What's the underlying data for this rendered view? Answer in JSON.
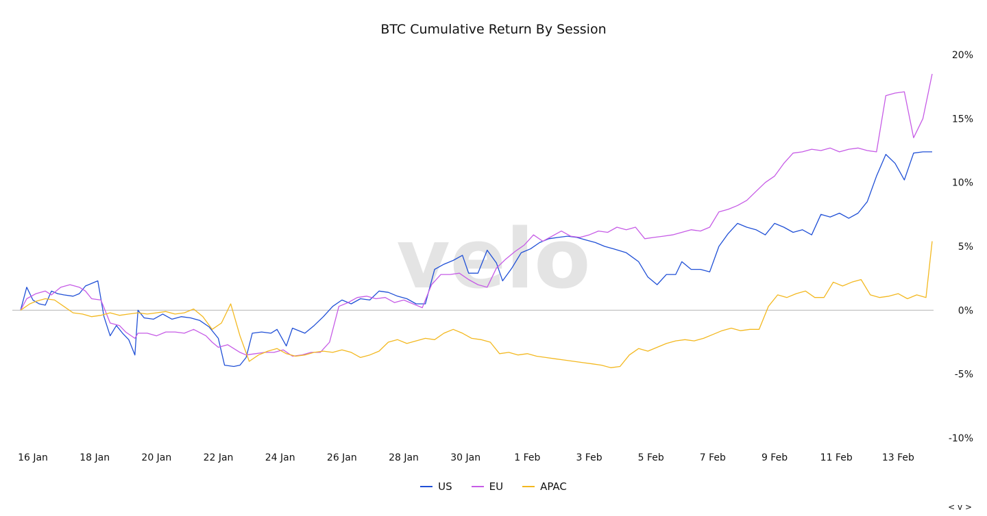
{
  "chart_data": {
    "type": "line",
    "title": "BTC Cumulative Return By Session",
    "watermark": "velo",
    "y_ticks": [
      "20%",
      "15%",
      "10%",
      "5%",
      "0%",
      "-5%",
      "-10%"
    ],
    "x_ticks": [
      "16 Jan",
      "18 Jan",
      "20 Jan",
      "22 Jan",
      "24 Jan",
      "26 Jan",
      "28 Jan",
      "30 Jan",
      "1 Feb",
      "3 Feb",
      "5 Feb",
      "7 Feb",
      "9 Feb",
      "11 Feb",
      "13 Feb"
    ],
    "ylim": [
      -10,
      20
    ],
    "y_axis_position": "right",
    "grid": false,
    "legend_placement": "bottom",
    "series": [
      {
        "name": "US",
        "color": "#1f4fd6",
        "points": [
          [
            0.0,
            0.0
          ],
          [
            0.2,
            1.8
          ],
          [
            0.4,
            0.8
          ],
          [
            0.6,
            0.5
          ],
          [
            0.8,
            0.4
          ],
          [
            1.0,
            1.5
          ],
          [
            1.2,
            1.3
          ],
          [
            1.4,
            1.2
          ],
          [
            1.7,
            1.1
          ],
          [
            1.9,
            1.3
          ],
          [
            2.1,
            1.9
          ],
          [
            2.3,
            2.1
          ],
          [
            2.5,
            2.3
          ],
          [
            2.7,
            -0.5
          ],
          [
            2.9,
            -2.0
          ],
          [
            3.1,
            -1.2
          ],
          [
            3.3,
            -1.8
          ],
          [
            3.5,
            -2.3
          ],
          [
            3.7,
            -3.5
          ],
          [
            3.8,
            0.0
          ],
          [
            4.0,
            -0.6
          ],
          [
            4.3,
            -0.7
          ],
          [
            4.6,
            -0.3
          ],
          [
            4.9,
            -0.7
          ],
          [
            5.2,
            -0.5
          ],
          [
            5.5,
            -0.6
          ],
          [
            5.8,
            -0.8
          ],
          [
            6.1,
            -1.3
          ],
          [
            6.4,
            -2.2
          ],
          [
            6.6,
            -4.3
          ],
          [
            6.9,
            -4.4
          ],
          [
            7.1,
            -4.3
          ],
          [
            7.3,
            -3.7
          ],
          [
            7.5,
            -1.8
          ],
          [
            7.8,
            -1.7
          ],
          [
            8.1,
            -1.8
          ],
          [
            8.3,
            -1.5
          ],
          [
            8.6,
            -2.8
          ],
          [
            8.8,
            -1.4
          ],
          [
            9.2,
            -1.8
          ],
          [
            9.5,
            -1.2
          ],
          [
            9.8,
            -0.5
          ],
          [
            10.1,
            0.3
          ],
          [
            10.4,
            0.8
          ],
          [
            10.7,
            0.5
          ],
          [
            11.0,
            0.9
          ],
          [
            11.3,
            0.8
          ],
          [
            11.6,
            1.5
          ],
          [
            11.9,
            1.4
          ],
          [
            12.2,
            1.1
          ],
          [
            12.5,
            0.9
          ],
          [
            12.8,
            0.5
          ],
          [
            13.1,
            0.5
          ],
          [
            13.4,
            3.2
          ],
          [
            13.7,
            3.6
          ],
          [
            14.0,
            3.9
          ],
          [
            14.3,
            4.3
          ],
          [
            14.5,
            2.9
          ],
          [
            14.8,
            2.9
          ],
          [
            15.1,
            4.7
          ],
          [
            15.4,
            3.7
          ],
          [
            15.6,
            2.3
          ],
          [
            15.9,
            3.3
          ],
          [
            16.2,
            4.5
          ],
          [
            16.5,
            4.8
          ],
          [
            16.8,
            5.3
          ],
          [
            17.1,
            5.6
          ],
          [
            17.4,
            5.7
          ],
          [
            17.7,
            5.8
          ],
          [
            18.0,
            5.7
          ],
          [
            18.3,
            5.5
          ],
          [
            18.6,
            5.3
          ],
          [
            18.9,
            5.0
          ],
          [
            19.2,
            4.8
          ],
          [
            19.6,
            4.5
          ],
          [
            20.0,
            3.8
          ],
          [
            20.3,
            2.6
          ],
          [
            20.6,
            2.0
          ],
          [
            20.9,
            2.8
          ],
          [
            21.2,
            2.8
          ],
          [
            21.4,
            3.8
          ],
          [
            21.7,
            3.2
          ],
          [
            22.0,
            3.2
          ],
          [
            22.3,
            3.0
          ],
          [
            22.6,
            5.0
          ],
          [
            22.9,
            6.0
          ],
          [
            23.2,
            6.8
          ],
          [
            23.5,
            6.5
          ],
          [
            23.8,
            6.3
          ],
          [
            24.1,
            5.9
          ],
          [
            24.4,
            6.8
          ],
          [
            24.7,
            6.5
          ],
          [
            25.0,
            6.1
          ],
          [
            25.3,
            6.3
          ],
          [
            25.6,
            5.9
          ],
          [
            25.9,
            7.5
          ],
          [
            26.2,
            7.3
          ],
          [
            26.5,
            7.6
          ],
          [
            26.8,
            7.2
          ],
          [
            27.1,
            7.6
          ],
          [
            27.4,
            8.5
          ],
          [
            27.7,
            10.5
          ],
          [
            28.0,
            12.2
          ],
          [
            28.3,
            11.5
          ],
          [
            28.6,
            10.2
          ],
          [
            28.9,
            12.3
          ],
          [
            29.2,
            12.4
          ],
          [
            29.5,
            12.4
          ]
        ]
      },
      {
        "name": "EU",
        "color": "#c65be6",
        "points": [
          [
            0.0,
            0.0
          ],
          [
            0.2,
            0.9
          ],
          [
            0.5,
            1.3
          ],
          [
            0.8,
            1.5
          ],
          [
            1.0,
            1.2
          ],
          [
            1.3,
            1.8
          ],
          [
            1.6,
            2.0
          ],
          [
            1.9,
            1.8
          ],
          [
            2.1,
            1.5
          ],
          [
            2.3,
            0.9
          ],
          [
            2.6,
            0.8
          ],
          [
            2.9,
            -1.0
          ],
          [
            3.2,
            -1.2
          ],
          [
            3.4,
            -1.7
          ],
          [
            3.7,
            -2.2
          ],
          [
            3.8,
            -1.8
          ],
          [
            4.1,
            -1.8
          ],
          [
            4.4,
            -2.0
          ],
          [
            4.7,
            -1.7
          ],
          [
            5.0,
            -1.7
          ],
          [
            5.3,
            -1.8
          ],
          [
            5.6,
            -1.5
          ],
          [
            6.0,
            -2.0
          ],
          [
            6.2,
            -2.5
          ],
          [
            6.4,
            -2.9
          ],
          [
            6.7,
            -2.7
          ],
          [
            6.9,
            -3.0
          ],
          [
            7.1,
            -3.3
          ],
          [
            7.3,
            -3.5
          ],
          [
            7.6,
            -3.4
          ],
          [
            7.9,
            -3.3
          ],
          [
            8.2,
            -3.3
          ],
          [
            8.5,
            -3.1
          ],
          [
            8.8,
            -3.6
          ],
          [
            9.1,
            -3.5
          ],
          [
            9.4,
            -3.3
          ],
          [
            9.7,
            -3.3
          ],
          [
            10.0,
            -2.5
          ],
          [
            10.3,
            0.3
          ],
          [
            10.6,
            0.6
          ],
          [
            10.9,
            1.0
          ],
          [
            11.2,
            1.1
          ],
          [
            11.5,
            0.9
          ],
          [
            11.8,
            1.0
          ],
          [
            12.1,
            0.6
          ],
          [
            12.4,
            0.8
          ],
          [
            12.7,
            0.5
          ],
          [
            13.0,
            0.2
          ],
          [
            13.3,
            2.0
          ],
          [
            13.6,
            2.8
          ],
          [
            13.9,
            2.8
          ],
          [
            14.2,
            2.9
          ],
          [
            14.5,
            2.4
          ],
          [
            14.8,
            2.0
          ],
          [
            15.1,
            1.8
          ],
          [
            15.4,
            3.3
          ],
          [
            15.7,
            4.0
          ],
          [
            16.0,
            4.6
          ],
          [
            16.3,
            5.1
          ],
          [
            16.6,
            5.9
          ],
          [
            16.9,
            5.4
          ],
          [
            17.2,
            5.8
          ],
          [
            17.5,
            6.2
          ],
          [
            17.8,
            5.8
          ],
          [
            18.1,
            5.7
          ],
          [
            18.4,
            5.9
          ],
          [
            18.7,
            6.2
          ],
          [
            19.0,
            6.1
          ],
          [
            19.3,
            6.5
          ],
          [
            19.6,
            6.3
          ],
          [
            19.9,
            6.5
          ],
          [
            20.2,
            5.6
          ],
          [
            20.5,
            5.7
          ],
          [
            20.8,
            5.8
          ],
          [
            21.1,
            5.9
          ],
          [
            21.4,
            6.1
          ],
          [
            21.7,
            6.3
          ],
          [
            22.0,
            6.2
          ],
          [
            22.3,
            6.5
          ],
          [
            22.6,
            7.7
          ],
          [
            22.9,
            7.9
          ],
          [
            23.2,
            8.2
          ],
          [
            23.5,
            8.6
          ],
          [
            23.8,
            9.3
          ],
          [
            24.1,
            10.0
          ],
          [
            24.4,
            10.5
          ],
          [
            24.7,
            11.5
          ],
          [
            25.0,
            12.3
          ],
          [
            25.3,
            12.4
          ],
          [
            25.6,
            12.6
          ],
          [
            25.9,
            12.5
          ],
          [
            26.2,
            12.7
          ],
          [
            26.5,
            12.4
          ],
          [
            26.8,
            12.6
          ],
          [
            27.1,
            12.7
          ],
          [
            27.4,
            12.5
          ],
          [
            27.7,
            12.4
          ],
          [
            28.0,
            16.8
          ],
          [
            28.3,
            17.0
          ],
          [
            28.6,
            17.1
          ],
          [
            28.9,
            13.5
          ],
          [
            29.2,
            15.0
          ],
          [
            29.5,
            18.5
          ]
        ]
      },
      {
        "name": "APAC",
        "color": "#f3b81f",
        "points": [
          [
            0.0,
            0.0
          ],
          [
            0.3,
            0.5
          ],
          [
            0.5,
            0.7
          ],
          [
            0.8,
            0.9
          ],
          [
            1.1,
            0.8
          ],
          [
            1.4,
            0.3
          ],
          [
            1.7,
            -0.2
          ],
          [
            2.0,
            -0.3
          ],
          [
            2.3,
            -0.5
          ],
          [
            2.6,
            -0.4
          ],
          [
            2.9,
            -0.2
          ],
          [
            3.2,
            -0.4
          ],
          [
            3.5,
            -0.3
          ],
          [
            3.8,
            -0.2
          ],
          [
            4.1,
            -0.3
          ],
          [
            4.4,
            -0.2
          ],
          [
            4.7,
            -0.1
          ],
          [
            5.0,
            -0.3
          ],
          [
            5.3,
            -0.2
          ],
          [
            5.6,
            0.1
          ],
          [
            5.9,
            -0.5
          ],
          [
            6.2,
            -1.5
          ],
          [
            6.5,
            -1.0
          ],
          [
            6.8,
            0.5
          ],
          [
            7.1,
            -2.0
          ],
          [
            7.4,
            -4.0
          ],
          [
            7.7,
            -3.5
          ],
          [
            8.0,
            -3.2
          ],
          [
            8.3,
            -3.0
          ],
          [
            8.6,
            -3.4
          ],
          [
            8.9,
            -3.6
          ],
          [
            9.2,
            -3.5
          ],
          [
            9.5,
            -3.3
          ],
          [
            9.8,
            -3.2
          ],
          [
            10.1,
            -3.3
          ],
          [
            10.4,
            -3.1
          ],
          [
            10.7,
            -3.3
          ],
          [
            11.0,
            -3.7
          ],
          [
            11.3,
            -3.5
          ],
          [
            11.6,
            -3.2
          ],
          [
            11.9,
            -2.5
          ],
          [
            12.2,
            -2.3
          ],
          [
            12.5,
            -2.6
          ],
          [
            12.8,
            -2.4
          ],
          [
            13.1,
            -2.2
          ],
          [
            13.4,
            -2.3
          ],
          [
            13.7,
            -1.8
          ],
          [
            14.0,
            -1.5
          ],
          [
            14.3,
            -1.8
          ],
          [
            14.6,
            -2.2
          ],
          [
            14.9,
            -2.3
          ],
          [
            15.2,
            -2.5
          ],
          [
            15.5,
            -3.4
          ],
          [
            15.8,
            -3.3
          ],
          [
            16.1,
            -3.5
          ],
          [
            16.4,
            -3.4
          ],
          [
            16.7,
            -3.6
          ],
          [
            17.0,
            -3.7
          ],
          [
            17.3,
            -3.8
          ],
          [
            17.6,
            -3.9
          ],
          [
            17.9,
            -4.0
          ],
          [
            18.2,
            -4.1
          ],
          [
            18.5,
            -4.2
          ],
          [
            18.8,
            -4.3
          ],
          [
            19.1,
            -4.5
          ],
          [
            19.4,
            -4.4
          ],
          [
            19.7,
            -3.5
          ],
          [
            20.0,
            -3.0
          ],
          [
            20.3,
            -3.2
          ],
          [
            20.6,
            -2.9
          ],
          [
            20.9,
            -2.6
          ],
          [
            21.2,
            -2.4
          ],
          [
            21.5,
            -2.3
          ],
          [
            21.8,
            -2.4
          ],
          [
            22.1,
            -2.2
          ],
          [
            22.4,
            -1.9
          ],
          [
            22.7,
            -1.6
          ],
          [
            23.0,
            -1.4
          ],
          [
            23.3,
            -1.6
          ],
          [
            23.6,
            -1.5
          ],
          [
            23.9,
            -1.5
          ],
          [
            24.2,
            0.3
          ],
          [
            24.5,
            1.2
          ],
          [
            24.8,
            1.0
          ],
          [
            25.1,
            1.3
          ],
          [
            25.4,
            1.5
          ],
          [
            25.7,
            1.0
          ],
          [
            26.0,
            1.0
          ],
          [
            26.3,
            2.2
          ],
          [
            26.6,
            1.9
          ],
          [
            26.9,
            2.2
          ],
          [
            27.2,
            2.4
          ],
          [
            27.5,
            1.2
          ],
          [
            27.8,
            1.0
          ],
          [
            28.1,
            1.1
          ],
          [
            28.4,
            1.3
          ],
          [
            28.7,
            0.9
          ],
          [
            29.0,
            1.2
          ],
          [
            29.3,
            1.0
          ],
          [
            29.5,
            5.4
          ]
        ]
      }
    ]
  },
  "legend": [
    {
      "label": "US",
      "color": "#1f4fd6"
    },
    {
      "label": "EU",
      "color": "#c65be6"
    },
    {
      "label": "APAC",
      "color": "#f3b81f"
    }
  ],
  "nav_label": "< v >"
}
